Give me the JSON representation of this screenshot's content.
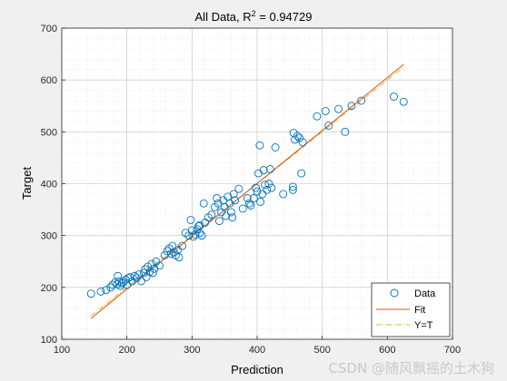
{
  "chart_data": {
    "type": "scatter",
    "title_prefix": "All Data, R",
    "title_sup": "2",
    "title_suffix": " = 0.94729",
    "xlabel": "Prediction",
    "ylabel": "Target",
    "xlim": [
      100,
      700
    ],
    "ylim": [
      100,
      700
    ],
    "xticks": [
      "100",
      "200",
      "300",
      "400",
      "500",
      "600",
      "700"
    ],
    "yticks": [
      "100",
      "200",
      "300",
      "400",
      "500",
      "600",
      "700"
    ],
    "grid": true,
    "minor_grid": true,
    "legend_position": "bottom-right",
    "legend": [
      "Data",
      "Fit",
      "Y=T"
    ],
    "colors": {
      "data": "#0072BD",
      "fit": "#D95319",
      "yt": "#EDB120",
      "axes_bg": "#ffffff",
      "figure_bg": "#f0f0f0"
    },
    "fit": {
      "slope": 1.02,
      "intercept": -7.5,
      "x_range": [
        145,
        625
      ]
    },
    "yt_range": [
      145,
      625
    ],
    "points": [
      [
        145,
        188
      ],
      [
        160,
        192
      ],
      [
        168,
        195
      ],
      [
        175,
        200
      ],
      [
        178,
        205
      ],
      [
        182,
        210
      ],
      [
        185,
        206
      ],
      [
        188,
        212
      ],
      [
        190,
        203
      ],
      [
        192,
        208
      ],
      [
        186,
        222
      ],
      [
        195,
        210
      ],
      [
        198,
        215
      ],
      [
        200,
        205
      ],
      [
        202,
        218
      ],
      [
        205,
        220
      ],
      [
        208,
        212
      ],
      [
        212,
        222
      ],
      [
        215,
        218
      ],
      [
        218,
        225
      ],
      [
        222,
        212
      ],
      [
        226,
        228
      ],
      [
        228,
        235
      ],
      [
        230,
        220
      ],
      [
        232,
        240
      ],
      [
        235,
        230
      ],
      [
        238,
        245
      ],
      [
        240,
        228
      ],
      [
        242,
        236
      ],
      [
        245,
        250
      ],
      [
        250,
        242
      ],
      [
        258,
        262
      ],
      [
        262,
        270
      ],
      [
        265,
        275
      ],
      [
        268,
        265
      ],
      [
        270,
        280
      ],
      [
        272,
        268
      ],
      [
        275,
        262
      ],
      [
        278,
        272
      ],
      [
        280,
        258
      ],
      [
        285,
        280
      ],
      [
        290,
        305
      ],
      [
        295,
        300
      ],
      [
        298,
        330
      ],
      [
        300,
        310
      ],
      [
        302,
        298
      ],
      [
        305,
        302
      ],
      [
        308,
        312
      ],
      [
        310,
        318
      ],
      [
        312,
        320
      ],
      [
        312,
        305
      ],
      [
        315,
        300
      ],
      [
        318,
        362
      ],
      [
        320,
        325
      ],
      [
        325,
        335
      ],
      [
        330,
        340
      ],
      [
        335,
        355
      ],
      [
        338,
        372
      ],
      [
        340,
        362
      ],
      [
        342,
        328
      ],
      [
        345,
        345
      ],
      [
        348,
        368
      ],
      [
        350,
        355
      ],
      [
        352,
        338
      ],
      [
        355,
        375
      ],
      [
        358,
        362
      ],
      [
        360,
        345
      ],
      [
        362,
        335
      ],
      [
        364,
        380
      ],
      [
        366,
        368
      ],
      [
        372,
        390
      ],
      [
        378,
        352
      ],
      [
        385,
        372
      ],
      [
        388,
        362
      ],
      [
        390,
        358
      ],
      [
        395,
        372
      ],
      [
        398,
        392
      ],
      [
        400,
        385
      ],
      [
        402,
        420
      ],
      [
        404,
        474
      ],
      [
        405,
        365
      ],
      [
        408,
        380
      ],
      [
        410,
        426
      ],
      [
        412,
        398
      ],
      [
        415,
        388
      ],
      [
        418,
        400
      ],
      [
        420,
        428
      ],
      [
        422,
        392
      ],
      [
        428,
        470
      ],
      [
        440,
        380
      ],
      [
        455,
        388
      ],
      [
        455,
        394
      ],
      [
        456,
        498
      ],
      [
        458,
        485
      ],
      [
        462,
        492
      ],
      [
        465,
        488
      ],
      [
        468,
        420
      ],
      [
        470,
        480
      ],
      [
        492,
        530
      ],
      [
        505,
        540
      ],
      [
        510,
        512
      ],
      [
        525,
        544
      ],
      [
        535,
        500
      ],
      [
        545,
        550
      ],
      [
        560,
        560
      ],
      [
        610,
        568
      ],
      [
        625,
        558
      ]
    ]
  }
}
